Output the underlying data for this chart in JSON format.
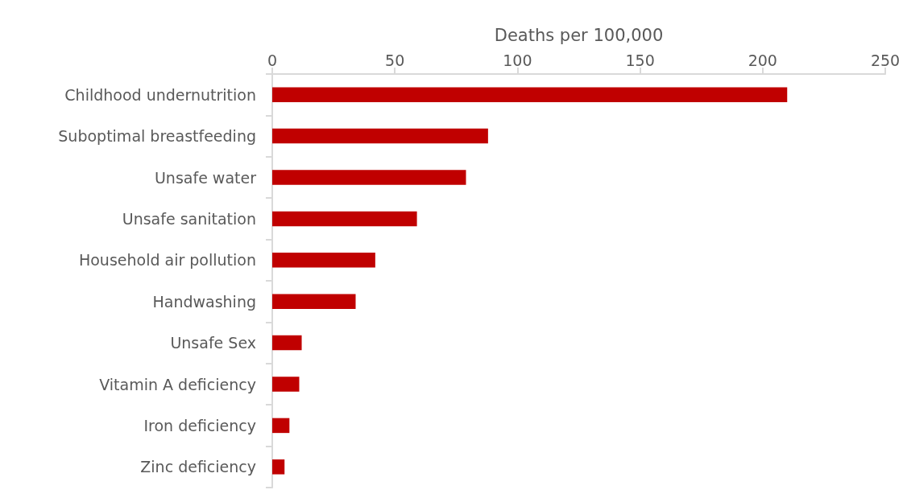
{
  "chart_data": {
    "type": "bar",
    "orientation": "horizontal",
    "xlabel": "Deaths per 100,000",
    "categories": [
      "Childhood undernutrition",
      "Suboptimal breastfeeding",
      "Unsafe water",
      "Unsafe sanitation",
      "Household air pollution",
      "Handwashing",
      "Unsafe Sex",
      "Vitamin A deficiency",
      "Iron deficiency",
      "Zinc deficiency"
    ],
    "values": [
      210,
      88,
      79,
      59,
      42,
      34,
      12,
      11,
      7,
      5
    ],
    "color": "#c00000",
    "xlim": [
      0,
      250
    ],
    "xticks": [
      0,
      50,
      100,
      150,
      200,
      250
    ],
    "grid": false
  }
}
